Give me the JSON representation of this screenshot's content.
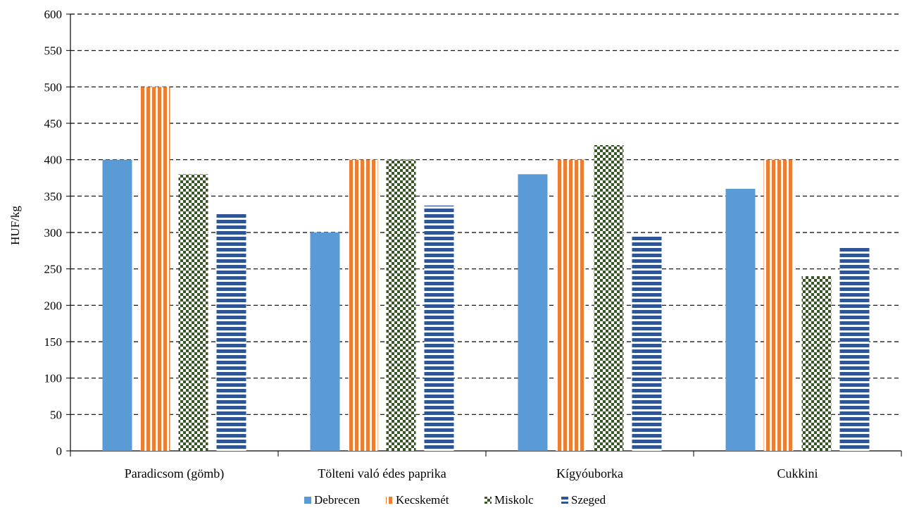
{
  "chart_data": {
    "type": "bar",
    "title": "",
    "xlabel": "",
    "ylabel": "HUF/kg",
    "ylim": [
      0,
      600
    ],
    "yticks": [
      0,
      50,
      100,
      150,
      200,
      250,
      300,
      350,
      400,
      450,
      500,
      550,
      600
    ],
    "grid": "horizontal dashed",
    "legend_position": "bottom",
    "categories": [
      "Paradicsom (gömb)",
      "Tölteni való édes paprika",
      "Kígyóuborka",
      "Cukkini"
    ],
    "series": [
      {
        "name": "Debrecen",
        "values": [
          400,
          300,
          380,
          360
        ],
        "color": "#5b9bd5",
        "pattern": "solid"
      },
      {
        "name": "Kecskemét",
        "values": [
          500,
          400,
          400,
          400
        ],
        "color": "#ed7d31",
        "pattern": "vertical-stripes"
      },
      {
        "name": "Miskolc",
        "values": [
          380,
          400,
          420,
          240
        ],
        "color": "#375623",
        "pattern": "checker"
      },
      {
        "name": "Szeged",
        "values": [
          328,
          337,
          297,
          280
        ],
        "color": "#2f5597",
        "pattern": "horizontal-stripes"
      }
    ]
  }
}
